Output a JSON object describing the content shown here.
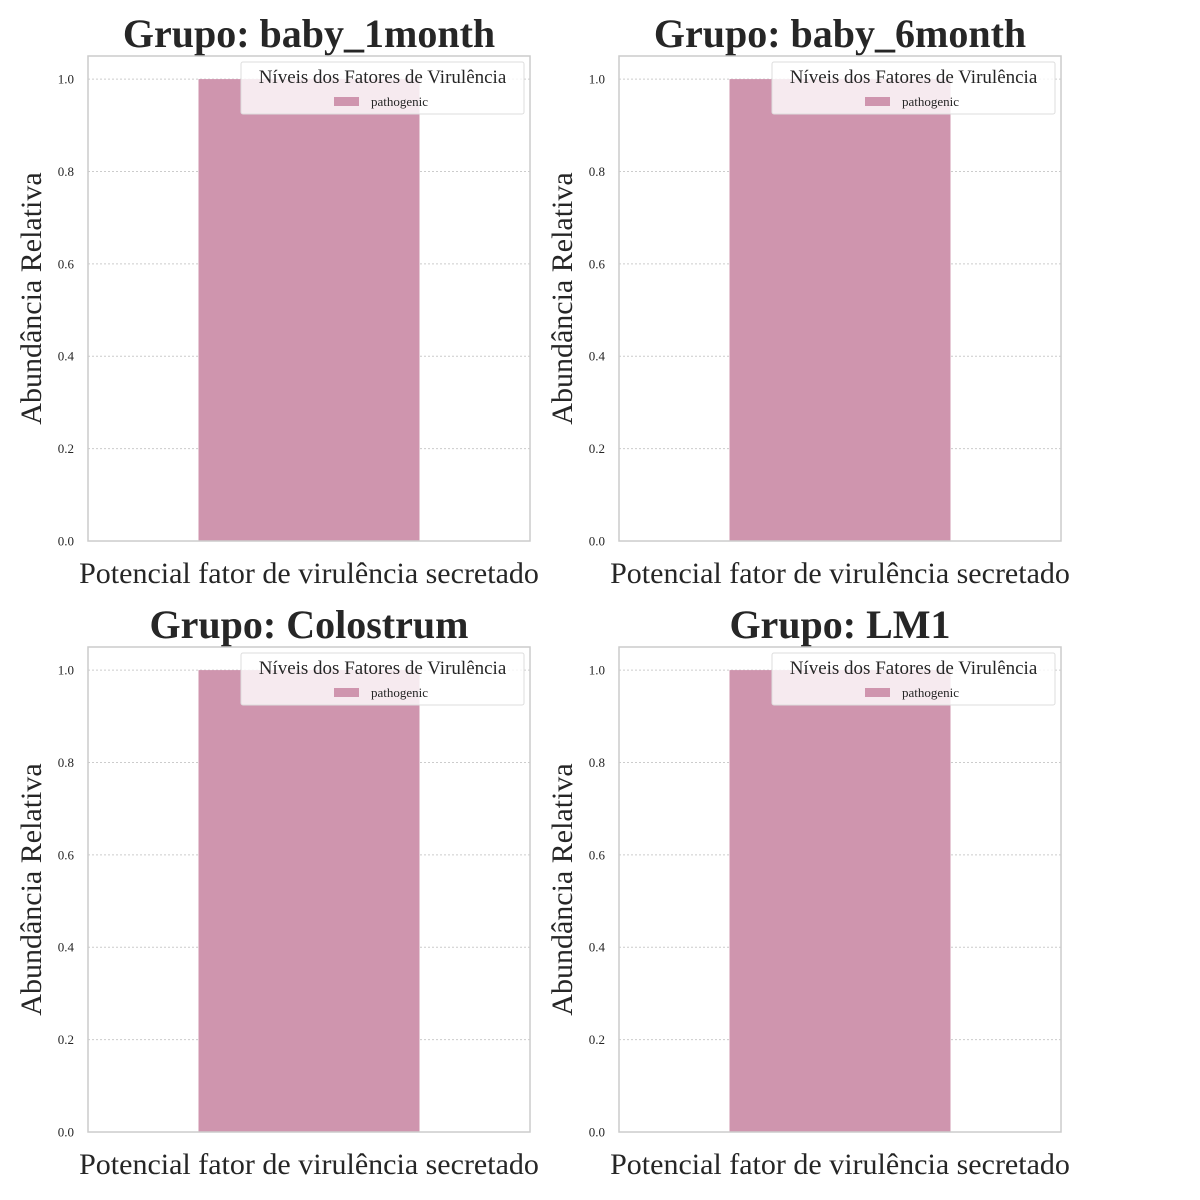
{
  "chart_data": [
    {
      "type": "bar",
      "title": "Grupo: baby_1month",
      "xlabel": "Potencial fator de virulência secretado",
      "ylabel": "Abundância Relativa",
      "categories": [
        ""
      ],
      "series": [
        {
          "name": "pathogenic",
          "values": [
            1.0
          ]
        }
      ],
      "ylim": [
        0,
        1.05
      ],
      "yticks": [
        "0.0",
        "0.2",
        "0.4",
        "0.6",
        "0.8",
        "1.0"
      ],
      "legend": {
        "title": "Níveis dos Fatores de Virulência",
        "position": "top-right"
      },
      "grid": true
    },
    {
      "type": "bar",
      "title": "Grupo: baby_6month",
      "xlabel": "Potencial fator de virulência secretado",
      "ylabel": "Abundância Relativa",
      "categories": [
        ""
      ],
      "series": [
        {
          "name": "pathogenic",
          "values": [
            1.0
          ]
        }
      ],
      "ylim": [
        0,
        1.05
      ],
      "yticks": [
        "0.0",
        "0.2",
        "0.4",
        "0.6",
        "0.8",
        "1.0"
      ],
      "legend": {
        "title": "Níveis dos Fatores de Virulência",
        "position": "top-right"
      },
      "grid": true
    },
    {
      "type": "bar",
      "title": "Grupo: Colostrum",
      "xlabel": "Potencial fator de virulência secretado",
      "ylabel": "Abundância Relativa",
      "categories": [
        ""
      ],
      "series": [
        {
          "name": "pathogenic",
          "values": [
            1.0
          ]
        }
      ],
      "ylim": [
        0,
        1.05
      ],
      "yticks": [
        "0.0",
        "0.2",
        "0.4",
        "0.6",
        "0.8",
        "1.0"
      ],
      "legend": {
        "title": "Níveis dos Fatores de Virulência",
        "position": "top-right"
      },
      "grid": true
    },
    {
      "type": "bar",
      "title": "Grupo: LM1",
      "xlabel": "Potencial fator de virulência secretado",
      "ylabel": "Abundância Relativa",
      "categories": [
        ""
      ],
      "series": [
        {
          "name": "pathogenic",
          "values": [
            1.0
          ]
        }
      ],
      "ylim": [
        0,
        1.05
      ],
      "yticks": [
        "0.0",
        "0.2",
        "0.4",
        "0.6",
        "0.8",
        "1.0"
      ],
      "legend": {
        "title": "Níveis dos Fatores de Virulência",
        "position": "top-right"
      },
      "grid": true
    }
  ],
  "colors": {
    "bar": "#cf95ae",
    "axis": "#cccccc",
    "grid": "#cccccc",
    "text": "#262626"
  }
}
